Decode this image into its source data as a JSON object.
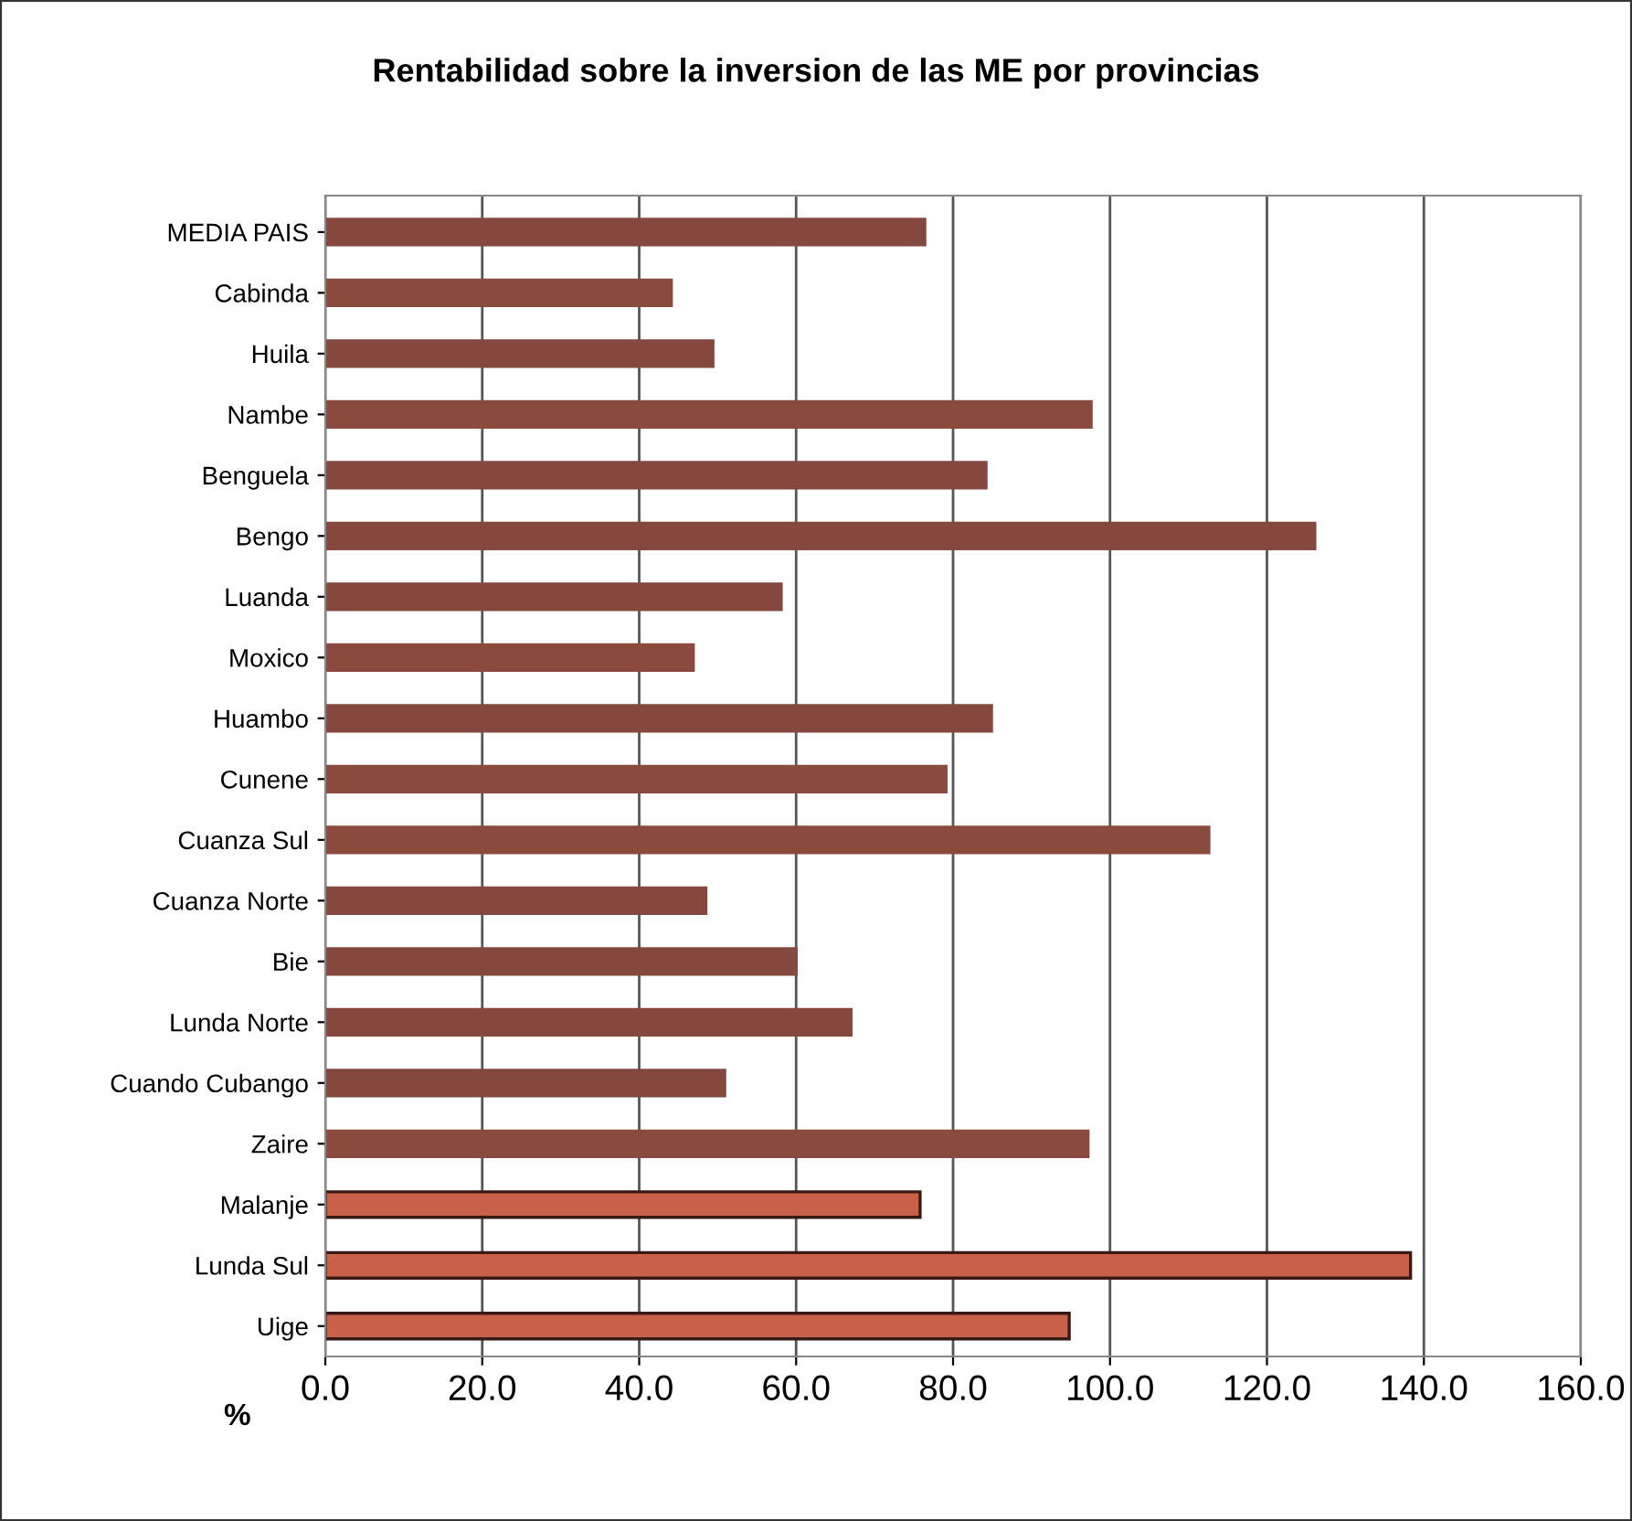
{
  "chart_data": {
    "type": "bar",
    "orientation": "horizontal",
    "title": "Rentabilidad sobre la inversion de las ME por provincias",
    "xlabel": "%",
    "categories": [
      "MEDIA PAIS",
      "Cabinda",
      "Huila",
      "Nambe",
      "Benguela",
      "Bengo",
      "Luanda",
      "Moxico",
      "Huambo",
      "Cunene",
      "Cuanza Sul",
      "Cuanza Norte",
      "Bie",
      "Lunda Norte",
      "Cuando Cubango",
      "Zaire",
      "Malanje",
      "Lunda Sul",
      "Uige"
    ],
    "values": [
      76.4,
      44.1,
      49.4,
      97.6,
      84.2,
      126.1,
      58.1,
      46.9,
      84.9,
      79.1,
      112.6,
      48.5,
      60.0,
      67.0,
      50.9,
      97.2,
      75.8,
      138.3,
      94.8
    ],
    "colors": [
      "#84483f",
      "#8a4a3e",
      "#84483f",
      "#8a4a3e",
      "#84483f",
      "#84483f",
      "#84483f",
      "#8a4a3e",
      "#84483f",
      "#8a4a3e",
      "#8a4a3e",
      "#84483f",
      "#84483f",
      "#84483f",
      "#84483f",
      "#8a4a3e",
      "#c8604a",
      "#c8604a",
      "#c8604a"
    ],
    "xlim": [
      0,
      160
    ],
    "xticks": [
      {
        "value": 0,
        "label": "0.0"
      },
      {
        "value": 20,
        "label": "20.0"
      },
      {
        "value": 40,
        "label": "40.0"
      },
      {
        "value": 60,
        "label": "60.0"
      },
      {
        "value": 80,
        "label": "80.0"
      },
      {
        "value": 100,
        "label": "100.0"
      },
      {
        "value": 120,
        "label": "120.0"
      },
      {
        "value": 140,
        "label": "140.0"
      },
      {
        "value": 160,
        "label": "160.0"
      }
    ],
    "grid": "x"
  }
}
